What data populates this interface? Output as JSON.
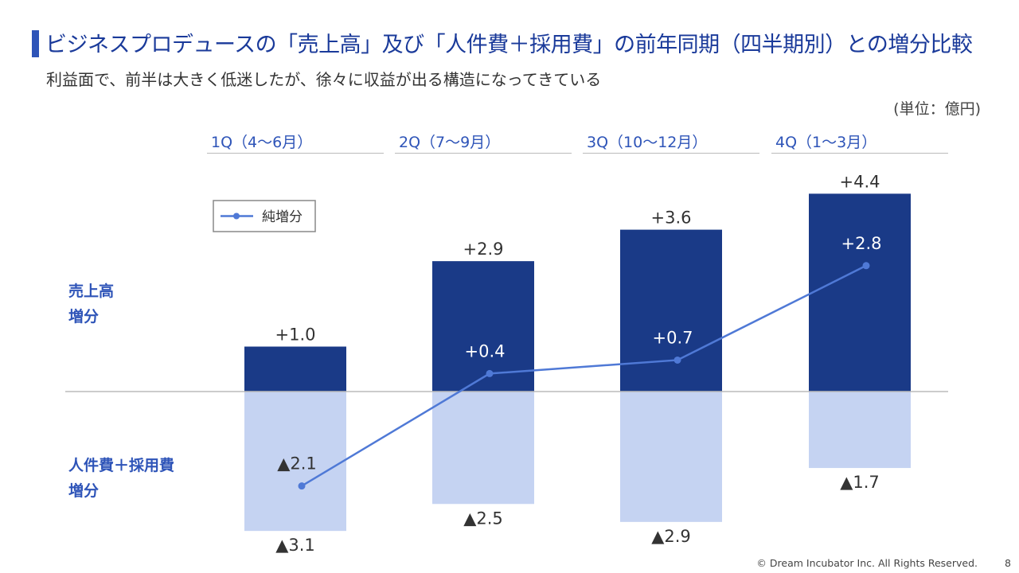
{
  "header": {
    "title": "ビジネスプロデュースの「売上高」及び「人件費＋採用費」の前年同期（四半期別）との増分比較",
    "subtitle": "利益面で、前半は大きく低迷したが、徐々に収益が出る構造になってきている",
    "unit": "(単位：億円)"
  },
  "side_labels": {
    "revenue": [
      "売上高",
      "増分"
    ],
    "cost": [
      "人件費＋採用費",
      "増分"
    ]
  },
  "footer": {
    "copyright": "© Dream Incubator Inc. All Rights Reserved.",
    "page": "8"
  },
  "colors": {
    "revenue_bar": "#1a3a87",
    "cost_bar": "#c5d3f2",
    "net_line": "#4f79d6",
    "axis": "#bbbbbb",
    "accent": "#2e54b8"
  },
  "chart_data": {
    "type": "bar",
    "categories": [
      "1Q（4～6月）",
      "2Q（7～9月）",
      "3Q（10～12月）",
      "4Q（1～3月）"
    ],
    "series": [
      {
        "key": "revenue",
        "values": [
          1.0,
          2.9,
          3.6,
          4.4
        ],
        "labels": [
          "+1.0",
          "+2.9",
          "+3.6",
          "+4.4"
        ]
      },
      {
        "key": "cost",
        "values": [
          -3.1,
          -2.5,
          -2.9,
          -1.7
        ],
        "labels": [
          "▲3.1",
          "▲2.5",
          "▲2.9",
          "▲1.7"
        ]
      },
      {
        "key": "net",
        "name": "純増分",
        "type": "line",
        "values": [
          -2.1,
          0.4,
          0.7,
          2.8
        ],
        "labels": [
          "▲2.1",
          "+0.4",
          "+0.7",
          "+2.8"
        ]
      }
    ],
    "legend": {
      "position": "top-left",
      "entries": [
        "純増分"
      ]
    }
  }
}
